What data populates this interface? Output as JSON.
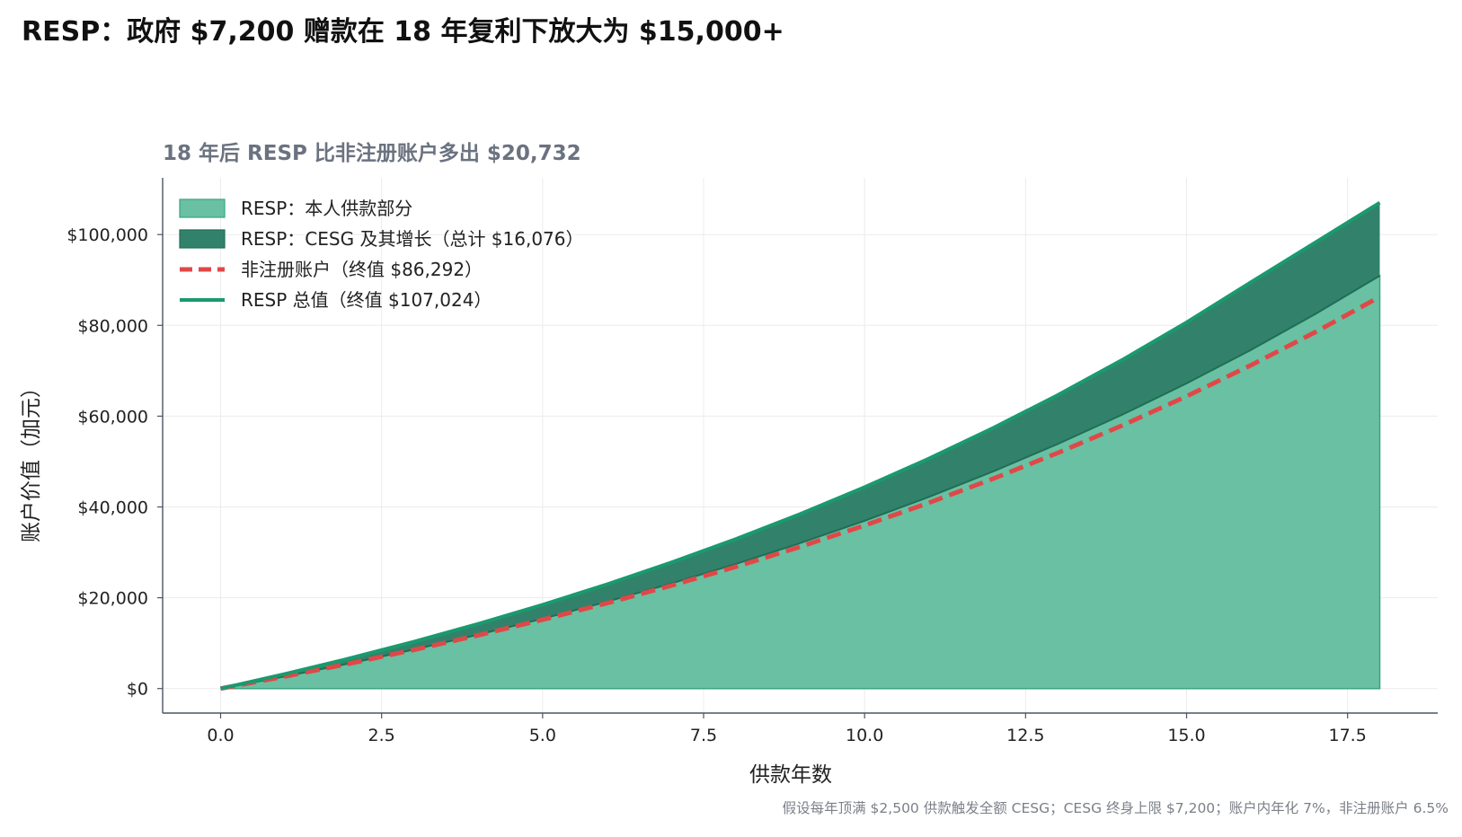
{
  "chart_data": {
    "type": "area",
    "title": "RESP：政府 $7,200 赠款在 18 年复利下放大为 $15,000+",
    "subtitle": "18 年后 RESP 比非注册账户多出 $20,732",
    "xlabel": "供款年数",
    "ylabel": "账户价值（加元）",
    "footnote": "假设每年顶满 $2,500 供款触发全额 CESG；CESG 终身上限 $7,200；账户内年化 7%，非注册账户 6.5%",
    "xlim": [
      -0.9,
      18.9
    ],
    "ylim": [
      -5400,
      112500
    ],
    "x_ticks": [
      0.0,
      2.5,
      5.0,
      7.5,
      10.0,
      12.5,
      15.0,
      17.5
    ],
    "x_tick_labels": [
      "0.0",
      "2.5",
      "5.0",
      "7.5",
      "10.0",
      "12.5",
      "15.0",
      "17.5"
    ],
    "y_ticks": [
      0,
      20000,
      40000,
      60000,
      80000,
      100000
    ],
    "y_tick_labels": [
      "$0",
      "$20,000",
      "$40,000",
      "$60,000",
      "$80,000",
      "$100,000"
    ],
    "grid": true,
    "legend_position": "top-left",
    "x": [
      0,
      1,
      2,
      3,
      4,
      5,
      6,
      7,
      8,
      9,
      10,
      11,
      12,
      13,
      14,
      15,
      16,
      17,
      18
    ],
    "series": [
      {
        "name": "RESP：本人供款部分",
        "kind": "stacked-area",
        "color": "#5dbb9a",
        "values": [
          0,
          2675,
          5537,
          8600,
          11877,
          15384,
          19135,
          23149,
          27445,
          32041,
          36959,
          42221,
          47851,
          53875,
          60321,
          67219,
          74599,
          82496,
          90946
        ]
      },
      {
        "name": "RESP：CESG 及其增长（总计 $16,076）",
        "kind": "stacked-area",
        "color": "#2e8068",
        "values": [
          0,
          535,
          1107,
          1720,
          2375,
          3077,
          3827,
          4630,
          5489,
          6408,
          7392,
          8444,
          9570,
          10775,
          12064,
          13444,
          14920,
          15779,
          16076
        ]
      },
      {
        "name": "非注册账户（终值 $86,292）",
        "kind": "line-dashed",
        "color": "#e04848",
        "values": [
          0,
          2663,
          5498,
          8518,
          11734,
          15159,
          18806,
          22691,
          26828,
          31234,
          35926,
          40924,
          46246,
          51914,
          57951,
          64380,
          71227,
          78519,
          86292
        ]
      },
      {
        "name": "RESP 总值（终值 $107,024）",
        "kind": "line",
        "color": "#1a9a6e",
        "values": [
          0,
          3210,
          6644,
          10320,
          14252,
          18461,
          22962,
          27779,
          32934,
          38449,
          44351,
          50665,
          57421,
          64650,
          72385,
          80663,
          89519,
          98275,
          107024
        ]
      }
    ]
  }
}
